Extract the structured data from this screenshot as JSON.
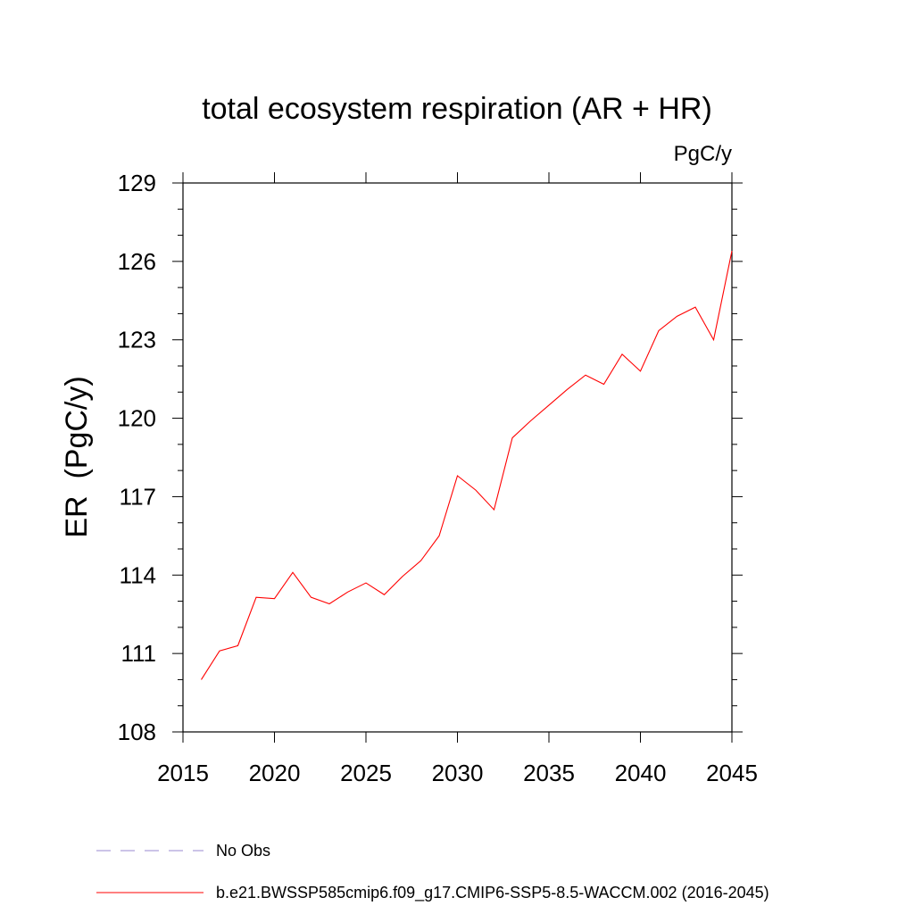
{
  "chart_data": {
    "type": "line",
    "title": "total ecosystem respiration (AR + HR)",
    "units_label": "PgC/y",
    "xlabel": "",
    "ylabel": "ER  (PgC/y)",
    "xlim": [
      2015,
      2045
    ],
    "ylim": [
      108,
      129
    ],
    "xticks": [
      2015,
      2020,
      2025,
      2030,
      2035,
      2040,
      2045
    ],
    "yticks": [
      108,
      111,
      114,
      117,
      120,
      123,
      126,
      129
    ],
    "grid": false,
    "series": [
      {
        "name": "b.e21.BWSSP585cmip6.f09_g17.CMIP6-SSP5-8.5-WACCM.002 (2016-2045)",
        "color": "#ff0000",
        "x": [
          2016,
          2017,
          2018,
          2019,
          2020,
          2021,
          2022,
          2023,
          2024,
          2025,
          2026,
          2027,
          2028,
          2029,
          2030,
          2031,
          2032,
          2033,
          2034,
          2035,
          2036,
          2037,
          2038,
          2039,
          2040,
          2041,
          2042,
          2043,
          2044,
          2045
        ],
        "y": [
          110.0,
          111.1,
          111.3,
          113.15,
          113.1,
          114.1,
          113.15,
          112.9,
          113.35,
          113.7,
          113.25,
          113.95,
          114.55,
          115.5,
          117.8,
          117.25,
          116.5,
          119.25,
          119.9,
          120.5,
          121.1,
          121.65,
          121.3,
          122.45,
          121.8,
          123.35,
          123.9,
          124.25,
          123.0,
          126.4
        ]
      }
    ],
    "legend": [
      {
        "label": "No Obs",
        "color": "#9a8ad0",
        "style": "dashed"
      },
      {
        "label": "b.e21.BWSSP585cmip6.f09_g17.CMIP6-SSP5-8.5-WACCM.002 (2016-2045)",
        "color": "#ff0000",
        "style": "solid"
      }
    ],
    "legend_position": "bottom"
  }
}
